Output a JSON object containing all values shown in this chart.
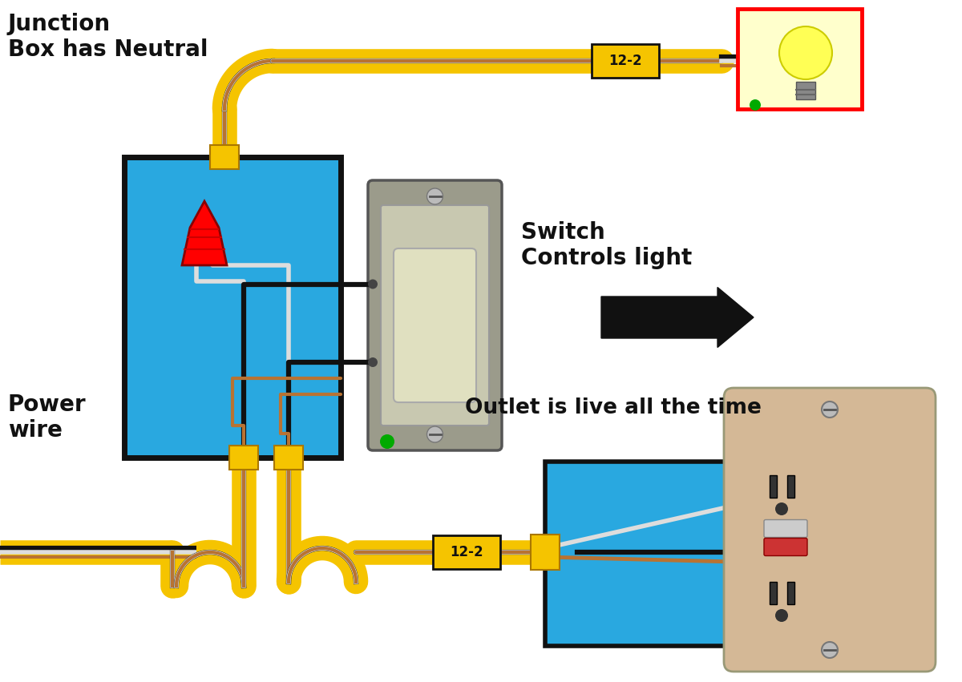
{
  "bg_color": "#ffffff",
  "labels": {
    "junction_box": "Junction\nBox has Neutral",
    "power_wire": "Power\nwire",
    "switch_controls": "Switch\nControls light",
    "outlet_live": "Outlet is live all the time",
    "wire_label_top": "12-2",
    "wire_label_bot": "12-2"
  },
  "colors": {
    "yellow": "#F5C400",
    "black": "#111111",
    "white_wire": "#dddddd",
    "copper": "#B87333",
    "blue": "#29A8E0",
    "red": "#FF0000",
    "green": "#00AA00",
    "beige": "#C8A87A",
    "beige_light": "#D4B896",
    "dark_gray": "#333333",
    "olive": "#6B6B40",
    "silver": "#BBBBBB",
    "light_yellow_fill": "#FFFFCC",
    "switch_gray": "#9B9B8B",
    "switch_inner": "#C8C8B0",
    "switch_toggle": "#E0E0C0"
  },
  "dims": {
    "fig_w": 12.0,
    "fig_h": 8.51,
    "xlim": [
      0,
      12
    ],
    "ylim": [
      0,
      8.51
    ]
  }
}
